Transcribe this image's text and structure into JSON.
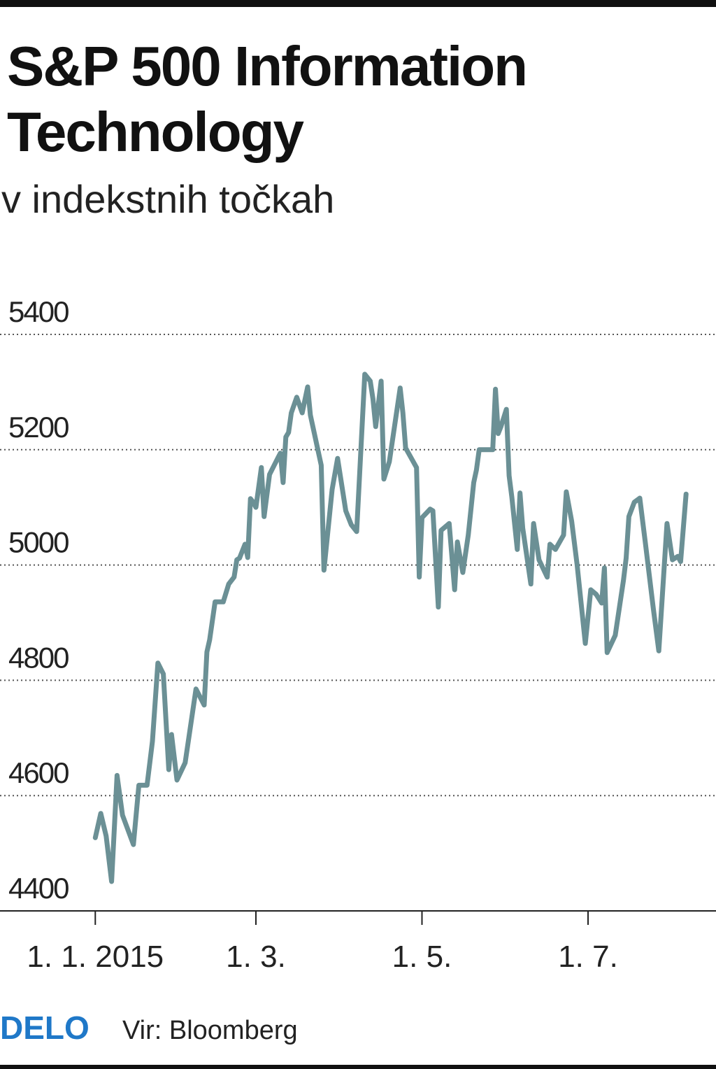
{
  "chart_data": {
    "type": "line",
    "title": "S&P 500 Information Technology",
    "subtitle": "v indekstnih točkah",
    "source": "Vir: Bloomberg",
    "brand": "DELO",
    "color": "#6b9095",
    "grid": true,
    "ylim": [
      4400,
      5400
    ],
    "yticks": [
      4400,
      4600,
      4800,
      5000,
      5200,
      5400
    ],
    "xlim": [
      -35,
      228
    ],
    "xticks": [
      {
        "value": 0,
        "label": "1. 1. 2015"
      },
      {
        "value": 59,
        "label": "1. 3."
      },
      {
        "value": 120,
        "label": "1. 5."
      },
      {
        "value": 181,
        "label": "1. 7."
      }
    ],
    "x": [
      0,
      2,
      4,
      6,
      8,
      10,
      14,
      16,
      19,
      21,
      23,
      25,
      27,
      28,
      30,
      33,
      37,
      40,
      41,
      42,
      44,
      47,
      49,
      51,
      52,
      53,
      55,
      56,
      57,
      58,
      59,
      61,
      62,
      64,
      67,
      68,
      69,
      70,
      71,
      72,
      74,
      76,
      78,
      79,
      83,
      84,
      87,
      89,
      92,
      94,
      96,
      99,
      101,
      102,
      103,
      105,
      106,
      108,
      112,
      113,
      114,
      118,
      119,
      120,
      123,
      124,
      126,
      127,
      130,
      132,
      133,
      135,
      137,
      139,
      140,
      141,
      144,
      146,
      147,
      148,
      149,
      151,
      152,
      153,
      155,
      156,
      157,
      160,
      161,
      163,
      166,
      167,
      169,
      172,
      173,
      175,
      177,
      180,
      182,
      184,
      186,
      187,
      188,
      191,
      194,
      195,
      196,
      198,
      200,
      202,
      205,
      207,
      210,
      212,
      214,
      215,
      217
    ],
    "values": [
      4527,
      4569,
      4530,
      4451,
      4635,
      4566,
      4515,
      4618,
      4618,
      4694,
      4830,
      4811,
      4645,
      4706,
      4627,
      4657,
      4785,
      4757,
      4849,
      4870,
      4936,
      4936,
      4967,
      4979,
      5009,
      5012,
      5036,
      5013,
      5115,
      5109,
      5100,
      5169,
      5084,
      5157,
      5185,
      5194,
      5143,
      5222,
      5230,
      5264,
      5291,
      5264,
      5309,
      5260,
      5173,
      4991,
      5131,
      5185,
      5094,
      5070,
      5058,
      5331,
      5319,
      5288,
      5240,
      5319,
      5149,
      5179,
      5307,
      5264,
      5203,
      5169,
      4979,
      5082,
      5097,
      5094,
      4927,
      5060,
      5072,
      4957,
      5040,
      4987,
      5052,
      5143,
      5165,
      5200,
      5200,
      5200,
      5305,
      5228,
      5240,
      5270,
      5155,
      5118,
      5027,
      5125,
      5064,
      4967,
      5072,
      5009,
      4979,
      5036,
      5027,
      5052,
      5127,
      5076,
      5000,
      4864,
      4957,
      4949,
      4934,
      4995,
      4848,
      4878,
      4973,
      5012,
      5084,
      5109,
      5116,
      5040,
      4924,
      4851,
      5072,
      5009,
      5015,
      5006,
      5123
    ]
  }
}
